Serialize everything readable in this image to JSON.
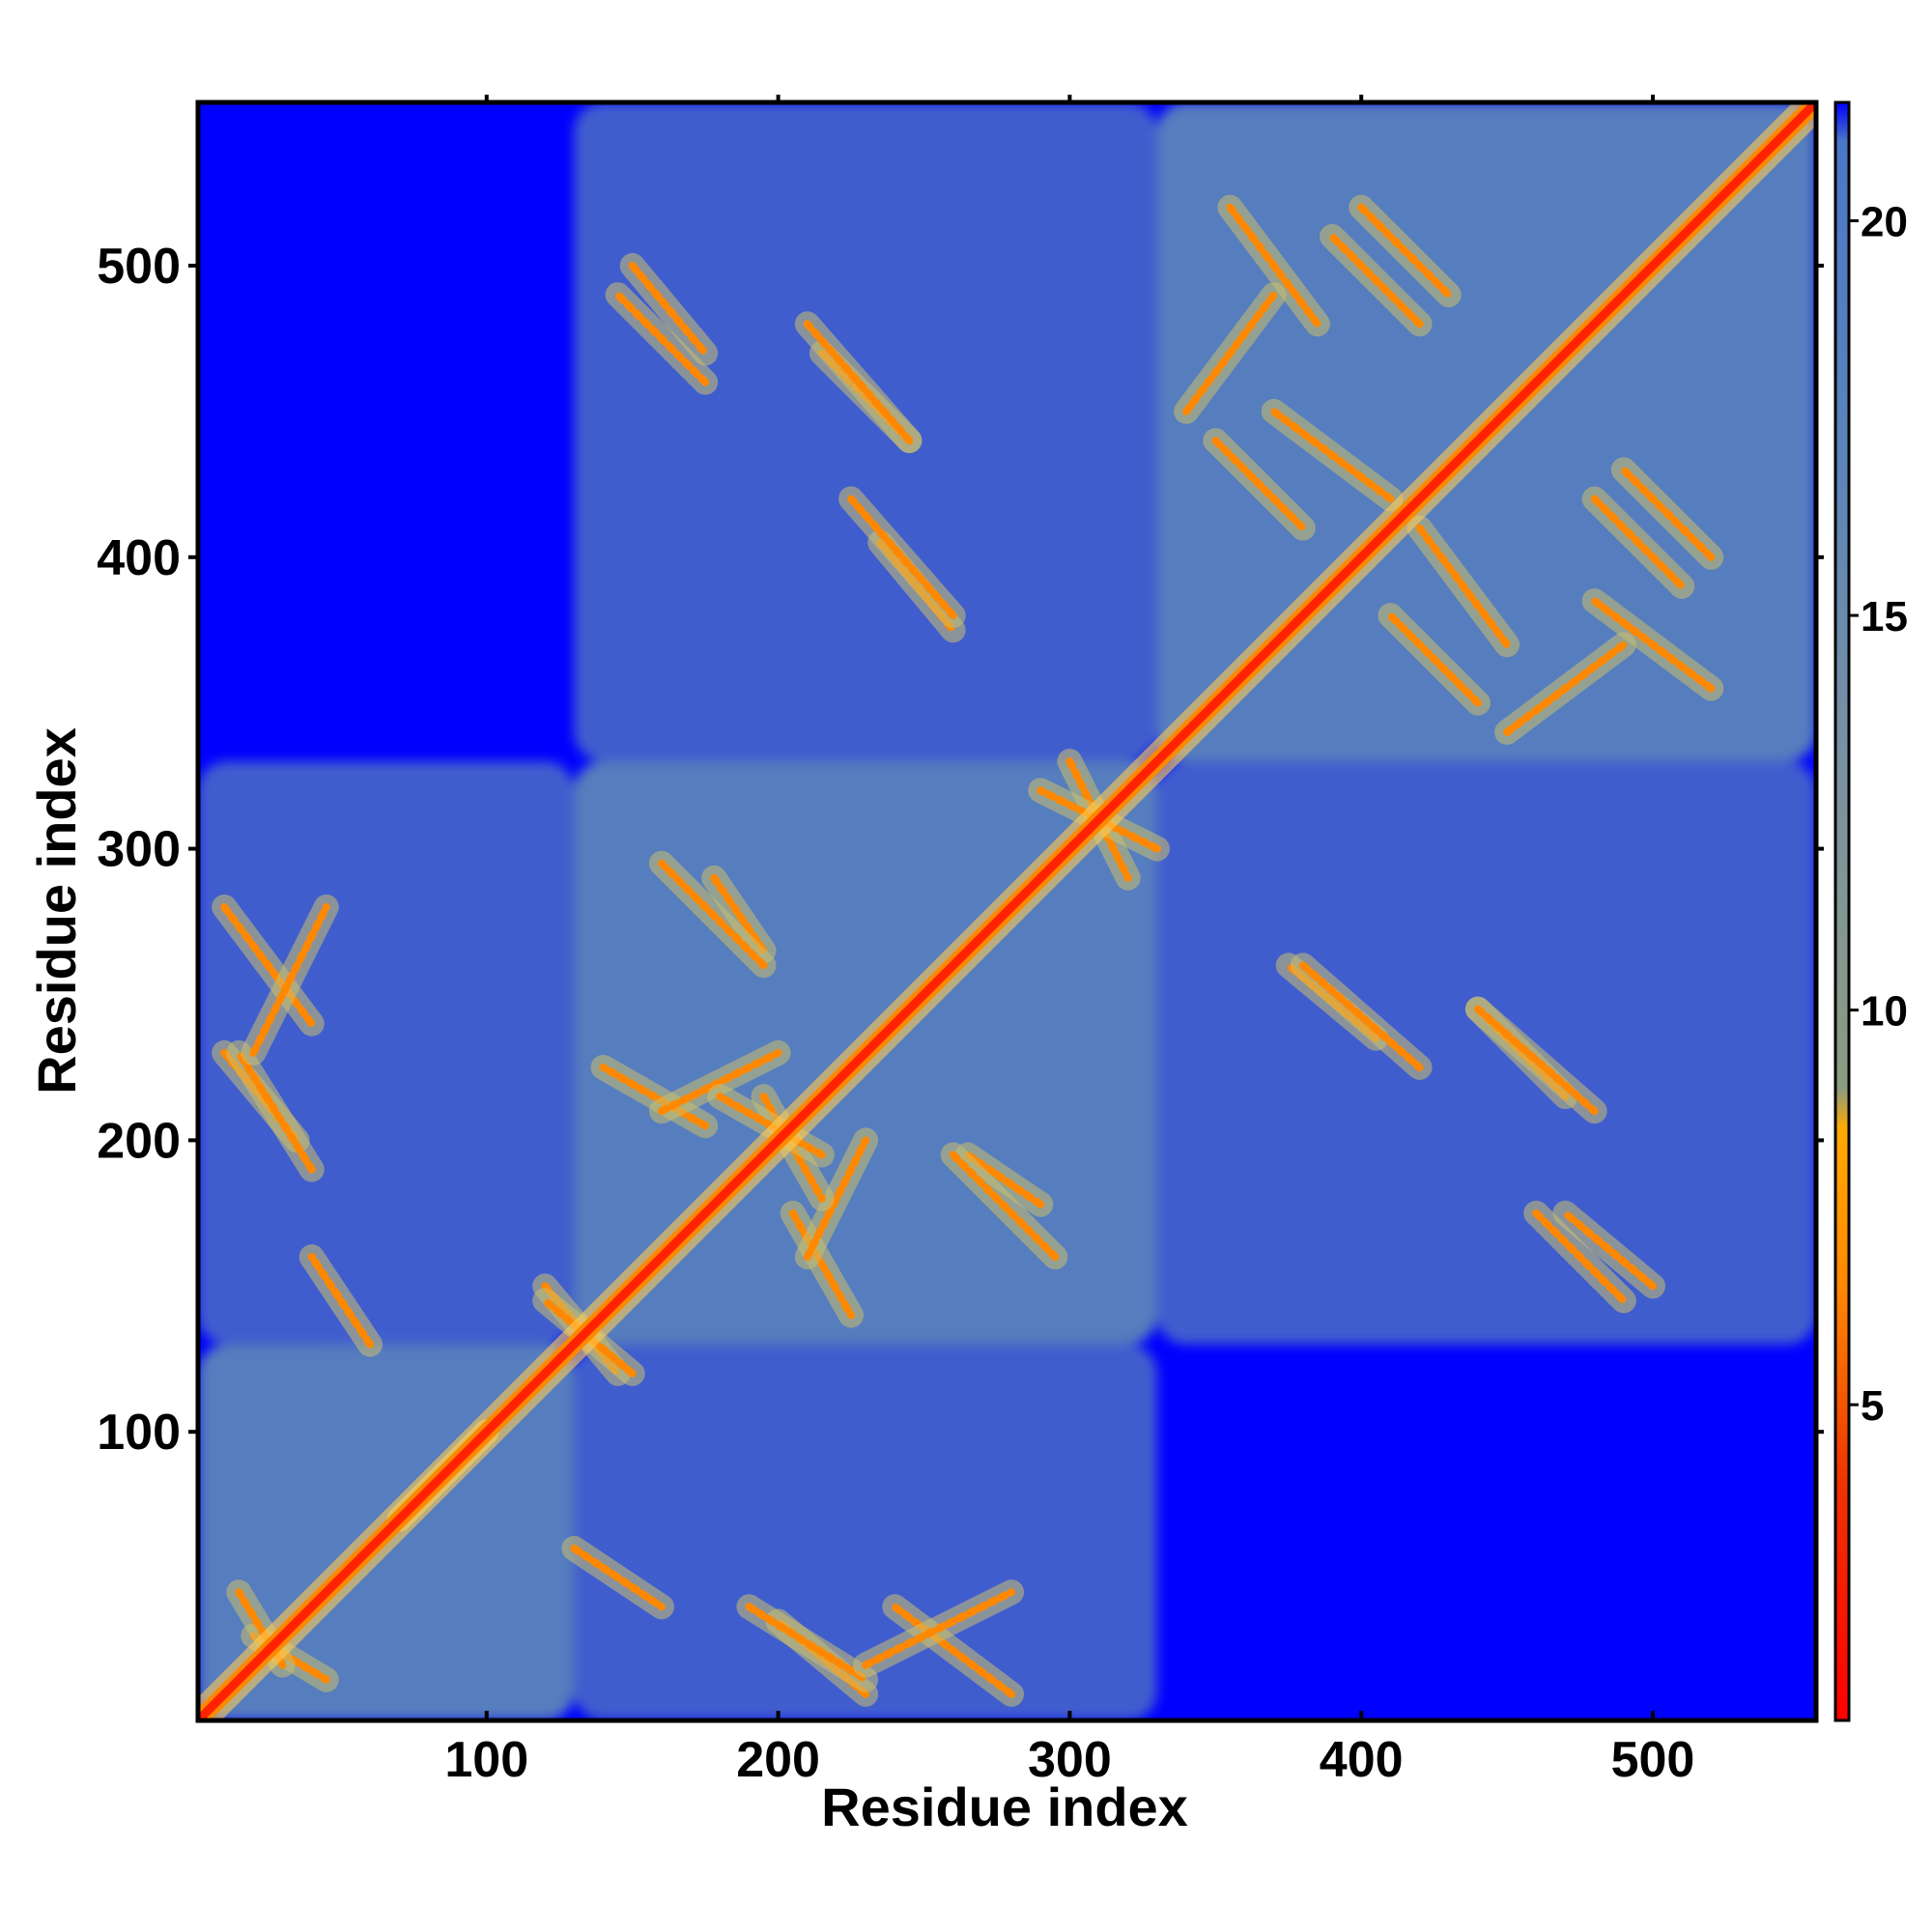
{
  "chart_data": {
    "type": "heatmap",
    "description_type": "residue distance map",
    "title": "",
    "xlabel": "Residue index",
    "ylabel": "Residue index",
    "xlim": [
      1,
      556
    ],
    "ylim": [
      1,
      556
    ],
    "x_ticks": [
      100,
      200,
      300,
      400,
      500
    ],
    "y_ticks": [
      100,
      200,
      300,
      400,
      500
    ],
    "x_tick_labels": [
      "100",
      "200",
      "300",
      "400",
      "500"
    ],
    "y_tick_labels": [
      "100",
      "200",
      "300",
      "400",
      "500"
    ],
    "colorbar": {
      "range": [
        1,
        21.5
      ],
      "ticks": [
        5,
        10,
        15,
        20
      ],
      "tick_labels": [
        "5",
        "10",
        "15",
        "20"
      ],
      "colors": [
        {
          "value": 1,
          "color": "#ff0000"
        },
        {
          "value": 4,
          "color": "#ee3300"
        },
        {
          "value": 6.5,
          "color": "#ff8800"
        },
        {
          "value": 8.5,
          "color": "#ffaa00"
        },
        {
          "value": 9,
          "color": "#8c9c80"
        },
        {
          "value": 13,
          "color": "#7a92a2"
        },
        {
          "value": 17,
          "color": "#5b84b9"
        },
        {
          "value": 21,
          "color": "#4a78c8"
        },
        {
          "value": 21.5,
          "color": "#0000ff"
        }
      ]
    },
    "background_color": "#0000ff",
    "contact_color": "#5b84b9",
    "diagonal_color": "#ff2200",
    "domains": [
      {
        "start": 1,
        "end": 130
      },
      {
        "start": 130,
        "end": 330
      },
      {
        "start": 330,
        "end": 556
      }
    ],
    "contact_bands": [
      {
        "x": [
          150,
          175
        ],
        "y": [
          500,
          470
        ]
      },
      {
        "x": [
          215,
          245
        ],
        "y": [
          470,
          440
        ]
      },
      {
        "x": [
          235,
          260
        ],
        "y": [
          405,
          375
        ]
      },
      {
        "x": [
          178,
          195
        ],
        "y": [
          290,
          265
        ]
      },
      {
        "x": [
          260,
          295
        ],
        "y": [
          195,
          160
        ]
      },
      {
        "x": [
          205,
          225
        ],
        "y": [
          175,
          140
        ]
      },
      {
        "x": [
          160,
          200
        ],
        "y": [
          210,
          230
        ]
      },
      {
        "x": [
          195,
          215
        ],
        "y": [
          215,
          180
        ]
      },
      {
        "x": [
          380,
          420
        ],
        "y": [
          260,
          225
        ]
      },
      {
        "x": [
          440,
          480
        ],
        "y": [
          245,
          210
        ]
      },
      {
        "x": [
          460,
          490
        ],
        "y": [
          175,
          145
        ]
      },
      {
        "x": [
          355,
          385
        ],
        "y": [
          520,
          480
        ]
      },
      {
        "x": [
          400,
          430
        ],
        "y": [
          520,
          490
        ]
      },
      {
        "x": [
          350,
          380
        ],
        "y": [
          440,
          410
        ]
      },
      {
        "x": [
          480,
          510
        ],
        "y": [
          420,
          390
        ]
      },
      {
        "x": [
          450,
          490
        ],
        "y": [
          340,
          370
        ]
      },
      {
        "x": [
          420,
          450
        ],
        "y": [
          410,
          370
        ]
      },
      {
        "x": [
          10,
          40
        ],
        "y": [
          280,
          240
        ]
      },
      {
        "x": [
          10,
          35
        ],
        "y": [
          230,
          200
        ]
      },
      {
        "x": [
          130,
          160
        ],
        "y": [
          60,
          40
        ]
      },
      {
        "x": [
          190,
          230
        ],
        "y": [
          40,
          15
        ]
      },
      {
        "x": [
          230,
          280
        ],
        "y": [
          20,
          45
        ]
      },
      {
        "x": [
          70,
          100
        ],
        "y": [
          70,
          100
        ]
      },
      {
        "x": [
          120,
          145
        ],
        "y": [
          150,
          120
        ]
      },
      {
        "x": [
          20,
          45
        ],
        "y": [
          30,
          15
        ]
      },
      {
        "x": [
          300,
          320
        ],
        "y": [
          330,
          290
        ]
      }
    ]
  }
}
